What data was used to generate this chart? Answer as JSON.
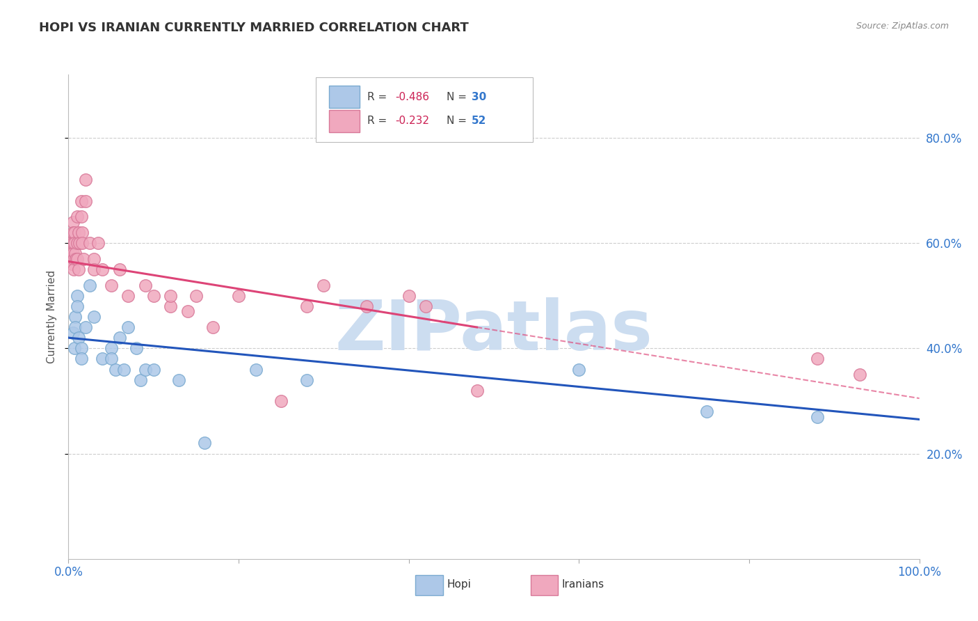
{
  "title": "HOPI VS IRANIAN CURRENTLY MARRIED CORRELATION CHART",
  "source": "Source: ZipAtlas.com",
  "ylabel_label": "Currently Married",
  "hopi_color": "#adc8e8",
  "hopi_edge_color": "#7aaad0",
  "iranian_color": "#f0a8be",
  "iranian_edge_color": "#d87898",
  "trend_hopi_color": "#2255bb",
  "trend_iranian_color": "#dd4477",
  "r_color": "#cc2255",
  "n_color": "#3377cc",
  "background_color": "#ffffff",
  "grid_color": "#cccccc",
  "hopi_x": [
    0.005,
    0.007,
    0.008,
    0.008,
    0.01,
    0.01,
    0.012,
    0.015,
    0.015,
    0.02,
    0.025,
    0.03,
    0.04,
    0.05,
    0.05,
    0.055,
    0.06,
    0.065,
    0.07,
    0.08,
    0.085,
    0.09,
    0.1,
    0.13,
    0.16,
    0.22,
    0.28,
    0.6,
    0.75,
    0.88
  ],
  "hopi_y": [
    0.43,
    0.4,
    0.46,
    0.44,
    0.5,
    0.48,
    0.42,
    0.4,
    0.38,
    0.44,
    0.52,
    0.46,
    0.38,
    0.4,
    0.38,
    0.36,
    0.42,
    0.36,
    0.44,
    0.4,
    0.34,
    0.36,
    0.36,
    0.34,
    0.22,
    0.36,
    0.34,
    0.36,
    0.28,
    0.27
  ],
  "iranian_x": [
    0.002,
    0.003,
    0.003,
    0.004,
    0.005,
    0.005,
    0.005,
    0.005,
    0.006,
    0.006,
    0.007,
    0.007,
    0.008,
    0.009,
    0.01,
    0.01,
    0.01,
    0.012,
    0.012,
    0.013,
    0.015,
    0.015,
    0.016,
    0.016,
    0.018,
    0.02,
    0.02,
    0.025,
    0.03,
    0.03,
    0.035,
    0.04,
    0.05,
    0.06,
    0.07,
    0.09,
    0.1,
    0.12,
    0.12,
    0.14,
    0.15,
    0.17,
    0.2,
    0.25,
    0.28,
    0.3,
    0.35,
    0.4,
    0.42,
    0.48,
    0.88,
    0.93
  ],
  "iranian_y": [
    0.57,
    0.6,
    0.58,
    0.56,
    0.64,
    0.62,
    0.6,
    0.58,
    0.57,
    0.55,
    0.62,
    0.6,
    0.58,
    0.57,
    0.6,
    0.65,
    0.57,
    0.55,
    0.62,
    0.6,
    0.68,
    0.65,
    0.62,
    0.6,
    0.57,
    0.72,
    0.68,
    0.6,
    0.57,
    0.55,
    0.6,
    0.55,
    0.52,
    0.55,
    0.5,
    0.52,
    0.5,
    0.48,
    0.5,
    0.47,
    0.5,
    0.44,
    0.5,
    0.3,
    0.48,
    0.52,
    0.48,
    0.5,
    0.48,
    0.32,
    0.38,
    0.35
  ],
  "xlim": [
    0.0,
    1.0
  ],
  "ylim": [
    0.0,
    0.92
  ],
  "trend_hopi_x0": 0.0,
  "trend_hopi_y0": 0.42,
  "trend_hopi_x1": 1.0,
  "trend_hopi_y1": 0.265,
  "trend_iranian_solid_x0": 0.0,
  "trend_iranian_solid_y0": 0.565,
  "trend_iranian_solid_x1": 0.48,
  "trend_iranian_solid_y1": 0.44,
  "trend_iranian_dash_x0": 0.48,
  "trend_iranian_dash_y0": 0.44,
  "trend_iranian_dash_x1": 1.0,
  "trend_iranian_dash_y1": 0.305,
  "watermark": "ZIPatlas",
  "watermark_color": "#ccddf0"
}
